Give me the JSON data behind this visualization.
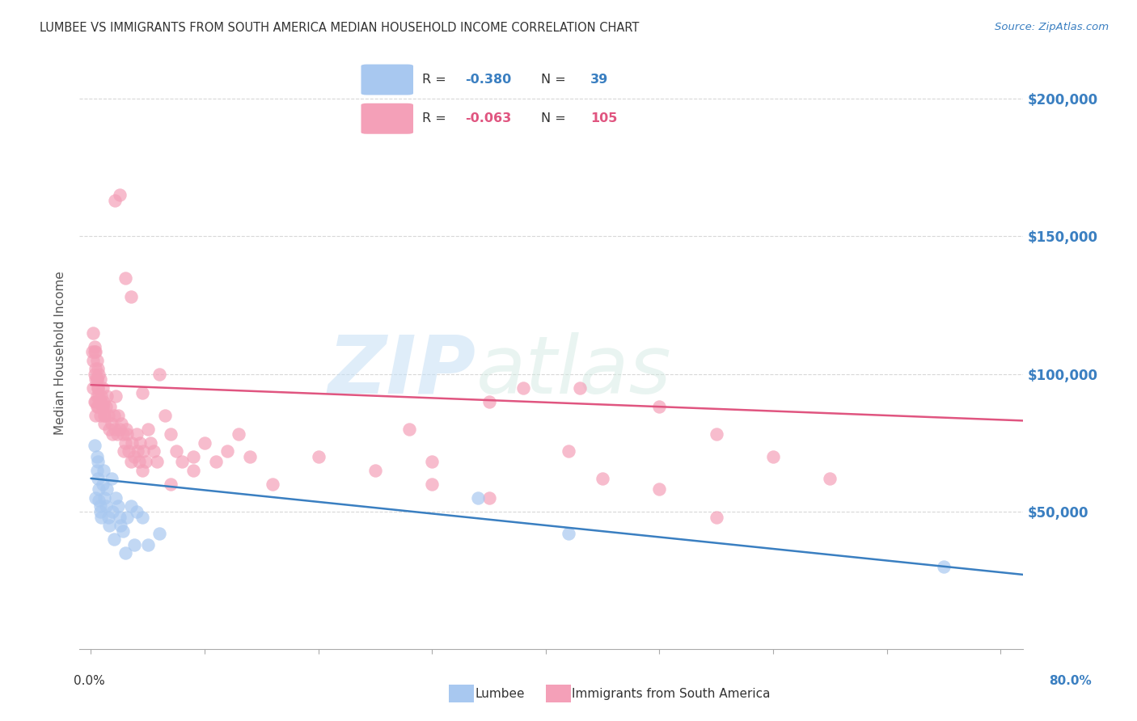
{
  "title": "LUMBEE VS IMMIGRANTS FROM SOUTH AMERICA MEDIAN HOUSEHOLD INCOME CORRELATION CHART",
  "source": "Source: ZipAtlas.com",
  "ylabel": "Median Household Income",
  "ytick_labels": [
    "$50,000",
    "$100,000",
    "$150,000",
    "$200,000"
  ],
  "ytick_values": [
    50000,
    100000,
    150000,
    200000
  ],
  "ymin": 0,
  "ymax": 215000,
  "xmin": 0.0,
  "xmax": 0.82,
  "blue_color": "#a8c8f0",
  "pink_color": "#f4a0b8",
  "blue_line_color": "#3a7fc1",
  "pink_line_color": "#e05580",
  "watermark_zip": "ZIP",
  "watermark_atlas": "atlas",
  "background_color": "#ffffff",
  "grid_color": "#d8d8d8",
  "lumbee_x": [
    0.003,
    0.004,
    0.005,
    0.005,
    0.006,
    0.006,
    0.007,
    0.007,
    0.008,
    0.008,
    0.009,
    0.01,
    0.011,
    0.012,
    0.013,
    0.014,
    0.015,
    0.016,
    0.018,
    0.019,
    0.02,
    0.022,
    0.024,
    0.025,
    0.026,
    0.028,
    0.03,
    0.032,
    0.035,
    0.038,
    0.04,
    0.045,
    0.05,
    0.06,
    0.34,
    0.42,
    0.75
  ],
  "lumbee_y": [
    74000,
    55000,
    70000,
    65000,
    68000,
    62000,
    58000,
    54000,
    52000,
    50000,
    48000,
    60000,
    65000,
    55000,
    52000,
    58000,
    48000,
    45000,
    62000,
    50000,
    40000,
    55000,
    52000,
    48000,
    45000,
    43000,
    35000,
    48000,
    52000,
    38000,
    50000,
    48000,
    38000,
    42000,
    55000,
    42000,
    30000
  ],
  "sa_x": [
    0.001,
    0.002,
    0.002,
    0.003,
    0.003,
    0.003,
    0.004,
    0.004,
    0.004,
    0.004,
    0.005,
    0.005,
    0.005,
    0.005,
    0.006,
    0.006,
    0.006,
    0.007,
    0.007,
    0.008,
    0.008,
    0.009,
    0.01,
    0.01,
    0.011,
    0.012,
    0.012,
    0.013,
    0.014,
    0.015,
    0.016,
    0.017,
    0.018,
    0.019,
    0.02,
    0.021,
    0.022,
    0.023,
    0.024,
    0.025,
    0.027,
    0.028,
    0.029,
    0.03,
    0.031,
    0.032,
    0.033,
    0.035,
    0.036,
    0.038,
    0.04,
    0.041,
    0.042,
    0.043,
    0.045,
    0.046,
    0.048,
    0.05,
    0.052,
    0.055,
    0.058,
    0.06,
    0.065,
    0.07,
    0.075,
    0.08,
    0.09,
    0.1,
    0.11,
    0.12,
    0.13,
    0.14,
    0.16,
    0.2,
    0.25,
    0.28,
    0.3,
    0.35,
    0.38,
    0.42,
    0.45,
    0.5,
    0.55,
    0.6,
    0.65,
    0.35,
    0.55,
    0.3,
    0.021,
    0.025,
    0.03,
    0.035,
    0.045,
    0.43,
    0.5,
    0.09,
    0.07,
    0.002,
    0.003,
    0.004,
    0.005,
    0.006,
    0.008,
    0.01,
    0.012
  ],
  "sa_y": [
    108000,
    105000,
    95000,
    110000,
    100000,
    90000,
    108000,
    98000,
    90000,
    85000,
    105000,
    98000,
    92000,
    88000,
    102000,
    95000,
    88000,
    100000,
    92000,
    98000,
    85000,
    92000,
    95000,
    88000,
    90000,
    85000,
    82000,
    88000,
    92000,
    85000,
    80000,
    88000,
    82000,
    78000,
    85000,
    80000,
    92000,
    78000,
    85000,
    80000,
    82000,
    78000,
    72000,
    75000,
    80000,
    78000,
    72000,
    68000,
    75000,
    70000,
    78000,
    72000,
    68000,
    75000,
    65000,
    72000,
    68000,
    80000,
    75000,
    72000,
    68000,
    100000,
    85000,
    78000,
    72000,
    68000,
    70000,
    75000,
    68000,
    72000,
    78000,
    70000,
    60000,
    70000,
    65000,
    80000,
    60000,
    55000,
    95000,
    72000,
    62000,
    58000,
    78000,
    70000,
    62000,
    90000,
    48000,
    68000,
    163000,
    165000,
    135000,
    128000,
    93000,
    95000,
    88000,
    65000,
    60000,
    115000,
    108000,
    102000,
    98000,
    95000,
    90000,
    88000,
    85000
  ]
}
